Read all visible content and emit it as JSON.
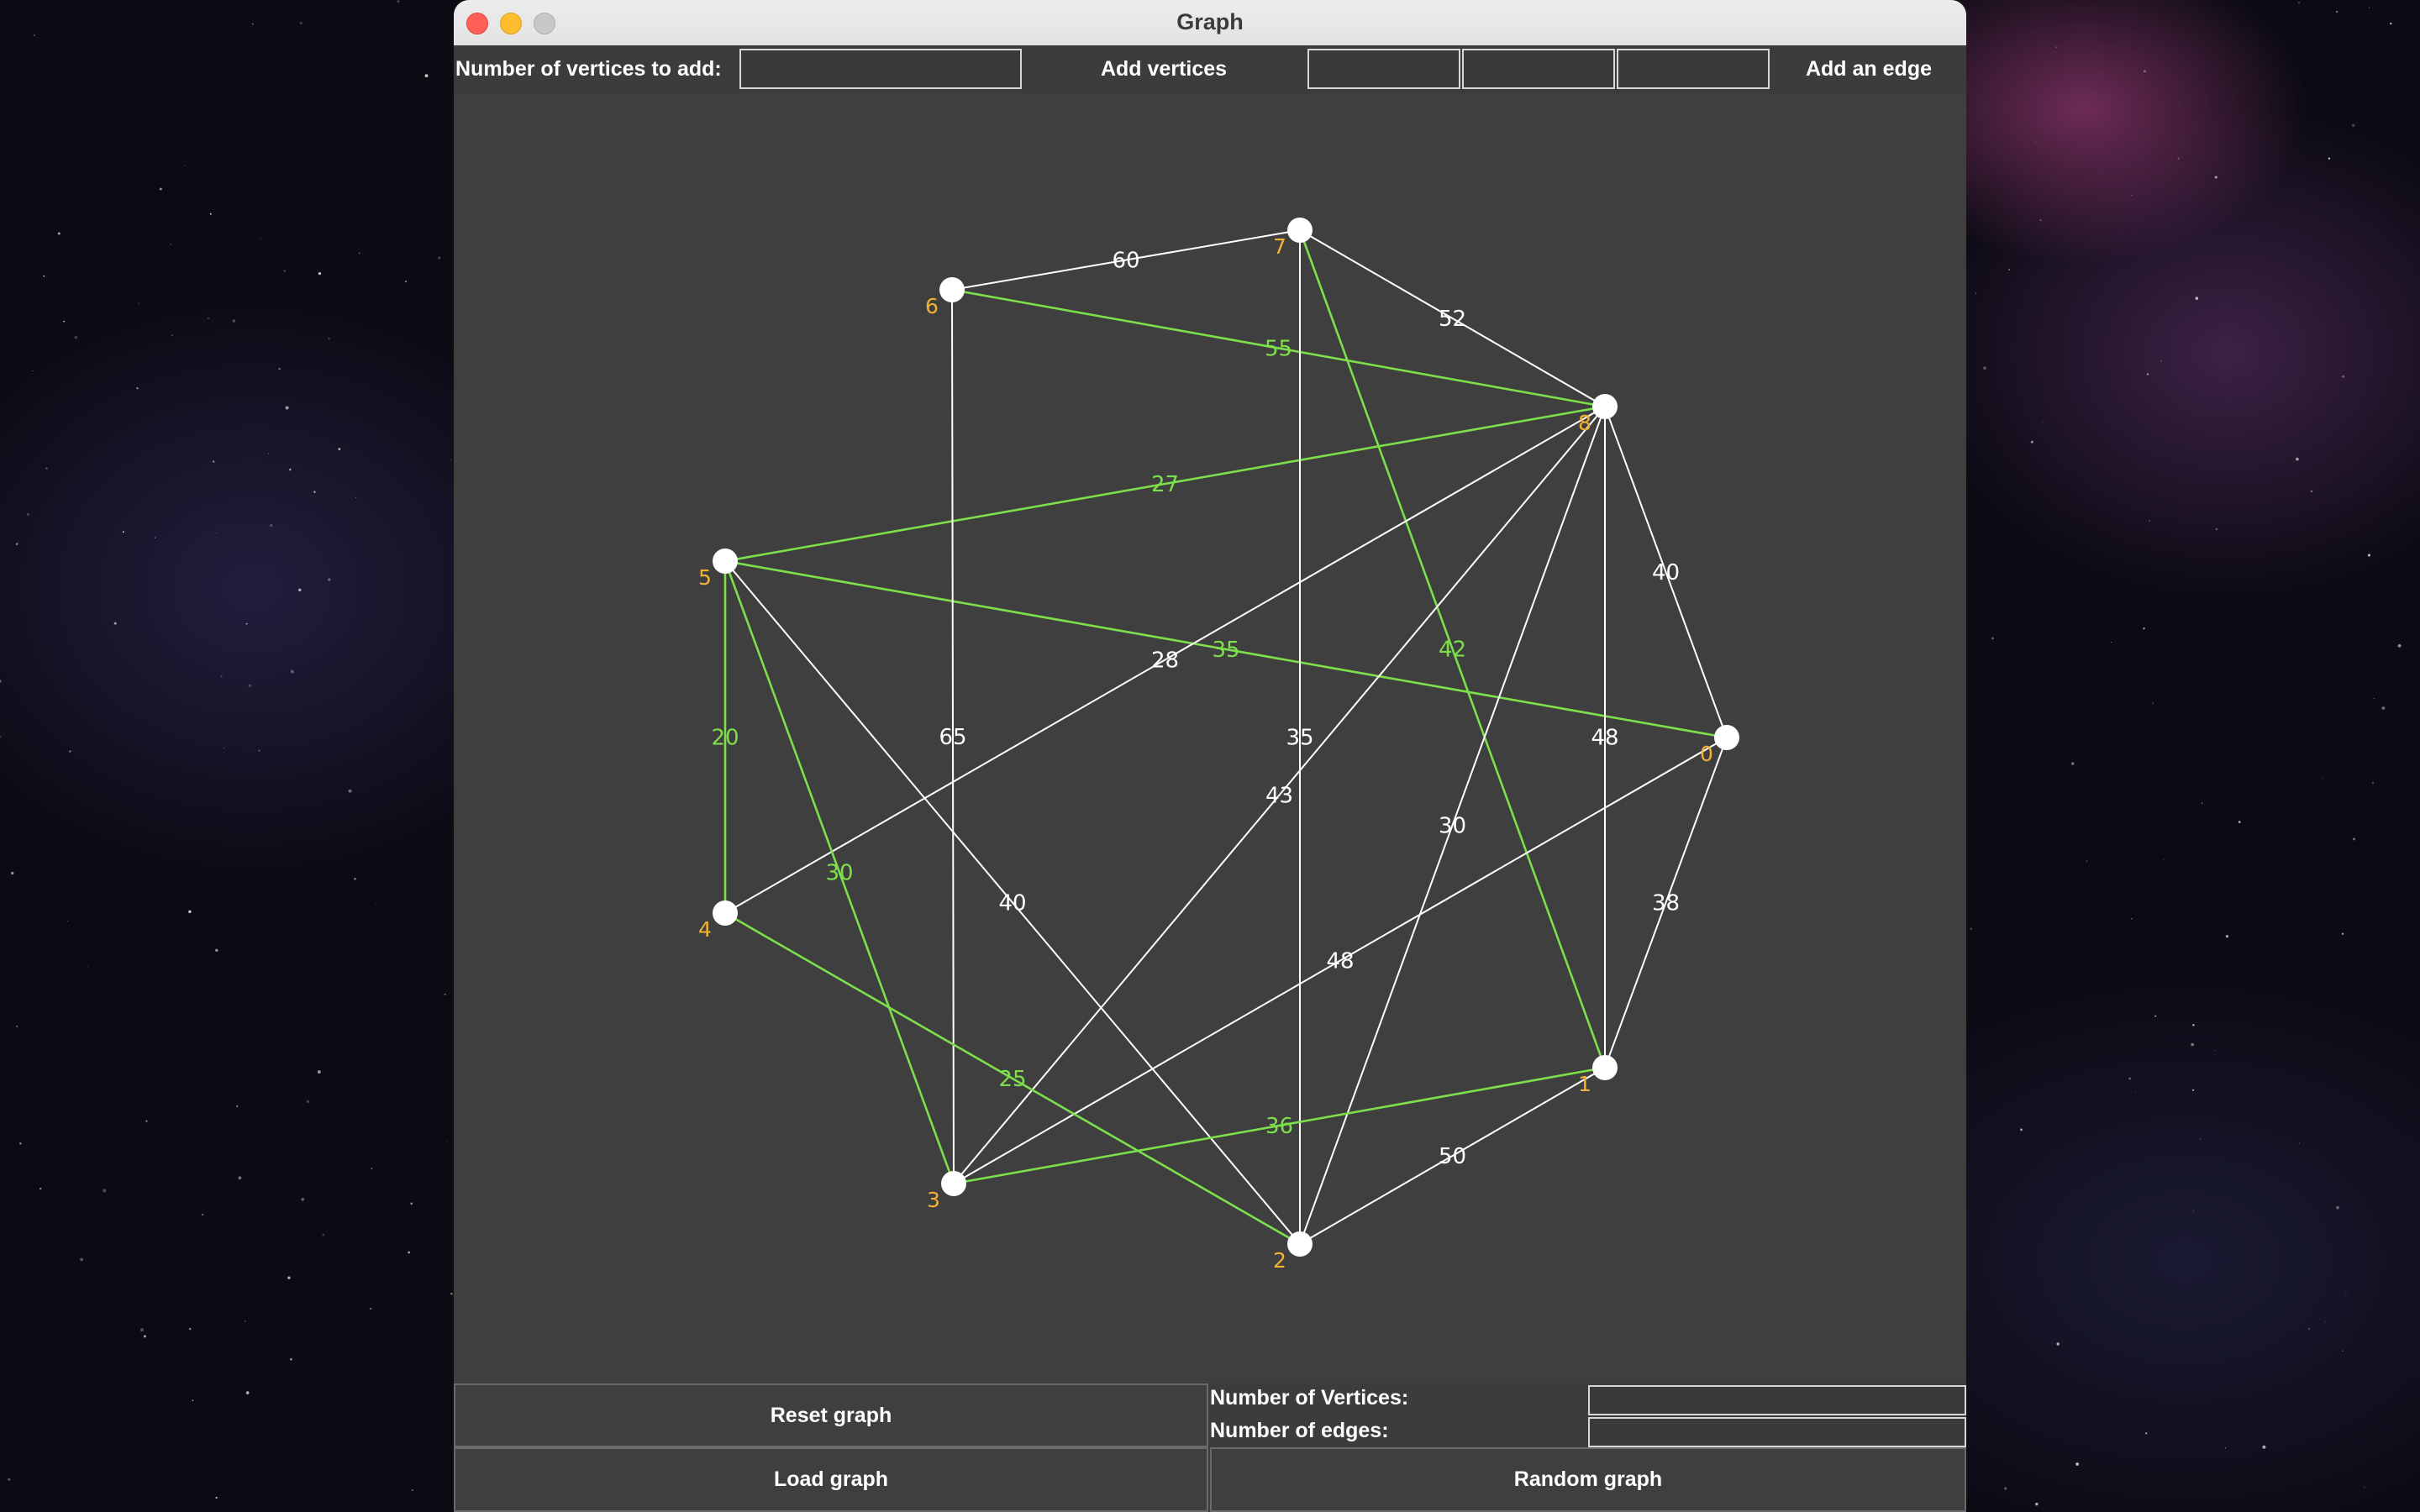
{
  "window": {
    "title": "Graph"
  },
  "toolbar": {
    "vertices_label": "Number of vertices to add:",
    "vertices_value": "",
    "add_vertices_label": "Add vertices",
    "edge_from_value": "",
    "edge_to_value": "",
    "edge_weight_value": "",
    "add_edge_label": "Add an edge"
  },
  "graph": {
    "normal_color": "#ffffff",
    "highlight_color": "#7ddf4b",
    "vertex_label_color": "#f2b233",
    "vertices": [
      {
        "id": "0"
      },
      {
        "id": "1"
      },
      {
        "id": "2"
      },
      {
        "id": "3"
      },
      {
        "id": "4"
      },
      {
        "id": "5"
      },
      {
        "id": "6"
      },
      {
        "id": "7"
      },
      {
        "id": "8"
      }
    ],
    "edges": [
      {
        "from": 6,
        "to": 7,
        "weight": "60",
        "highlight": false
      },
      {
        "from": 7,
        "to": 8,
        "weight": "52",
        "highlight": false
      },
      {
        "from": 6,
        "to": 8,
        "weight": "55",
        "highlight": true
      },
      {
        "from": 5,
        "to": 8,
        "weight": "27",
        "highlight": true
      },
      {
        "from": 8,
        "to": 0,
        "weight": "40",
        "highlight": false
      },
      {
        "from": 7,
        "to": 1,
        "weight": "42",
        "highlight": true
      },
      {
        "from": 5,
        "to": 0,
        "weight": "35",
        "highlight": true
      },
      {
        "from": 4,
        "to": 8,
        "weight": "28",
        "highlight": false
      },
      {
        "from": 6,
        "to": 3,
        "weight": "65",
        "highlight": false
      },
      {
        "from": 3,
        "to": 8,
        "weight": "43",
        "highlight": false
      },
      {
        "from": 7,
        "to": 2,
        "weight": "35",
        "highlight": false
      },
      {
        "from": 8,
        "to": 1,
        "weight": "48",
        "highlight": false
      },
      {
        "from": 2,
        "to": 8,
        "weight": "30",
        "highlight": false
      },
      {
        "from": 5,
        "to": 4,
        "weight": "20",
        "highlight": true
      },
      {
        "from": 5,
        "to": 3,
        "weight": "30",
        "highlight": true
      },
      {
        "from": 5,
        "to": 2,
        "weight": "40",
        "highlight": false
      },
      {
        "from": 0,
        "to": 1,
        "weight": "38",
        "highlight": false
      },
      {
        "from": 3,
        "to": 0,
        "weight": "48",
        "highlight": false
      },
      {
        "from": 4,
        "to": 2,
        "weight": "25",
        "highlight": true
      },
      {
        "from": 3,
        "to": 1,
        "weight": "36",
        "highlight": true
      },
      {
        "from": 2,
        "to": 1,
        "weight": "50",
        "highlight": false
      }
    ]
  },
  "bottom": {
    "reset_label": "Reset graph",
    "vertices_count_label": "Number of Vertices:",
    "vertices_count_value": "",
    "edges_count_label": "Number of edges:",
    "edges_count_value": "",
    "load_label": "Load graph",
    "random_label": "Random graph"
  }
}
